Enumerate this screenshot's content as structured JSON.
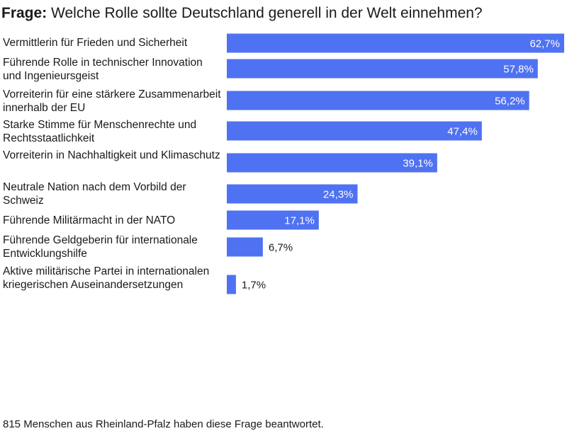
{
  "title_prefix": "Frage:",
  "title": "Welche Rolle sollte Deutschland generell in der Welt einnehmen?",
  "footnote": "815 Menschen aus Rheinland-Pfalz haben diese Frage beantwortet.",
  "colors": {
    "bar": "#4f72f2",
    "label_inside": "#ffffff",
    "label_outside": "#1a1a1a"
  },
  "chart_data": {
    "type": "bar",
    "orientation": "horizontal",
    "categories": [
      "Vermittlerin für Frieden und Sicherheit",
      "Führende Rolle in technischer Innovation und Ingenieursgeist",
      "Vorreiterin für eine stärkere Zusammenarbeit innerhalb der EU",
      "Starke Stimme für Menschenrechte und Rechtsstaatlichkeit",
      "Vorreiterin in Nachhaltigkeit und Klimaschutz",
      "Neutrale Nation nach dem Vorbild der Schweiz",
      "Führende Militärmacht in der NATO",
      "Führende Geldgeberin für internationale Entwicklungshilfe",
      "Aktive militärische Partei in internationalen kriegerischen Auseinandersetzungen"
    ],
    "values": [
      62.7,
      57.8,
      56.2,
      47.4,
      39.1,
      24.3,
      17.1,
      6.7,
      1.7
    ],
    "value_labels": [
      "62,7%",
      "57,8%",
      "56,2%",
      "47,4%",
      "39,1%",
      "24,3%",
      "17,1%",
      "6,7%",
      "1,7%"
    ],
    "xlim": [
      0,
      62.7
    ],
    "grid": false,
    "legend": "none"
  }
}
